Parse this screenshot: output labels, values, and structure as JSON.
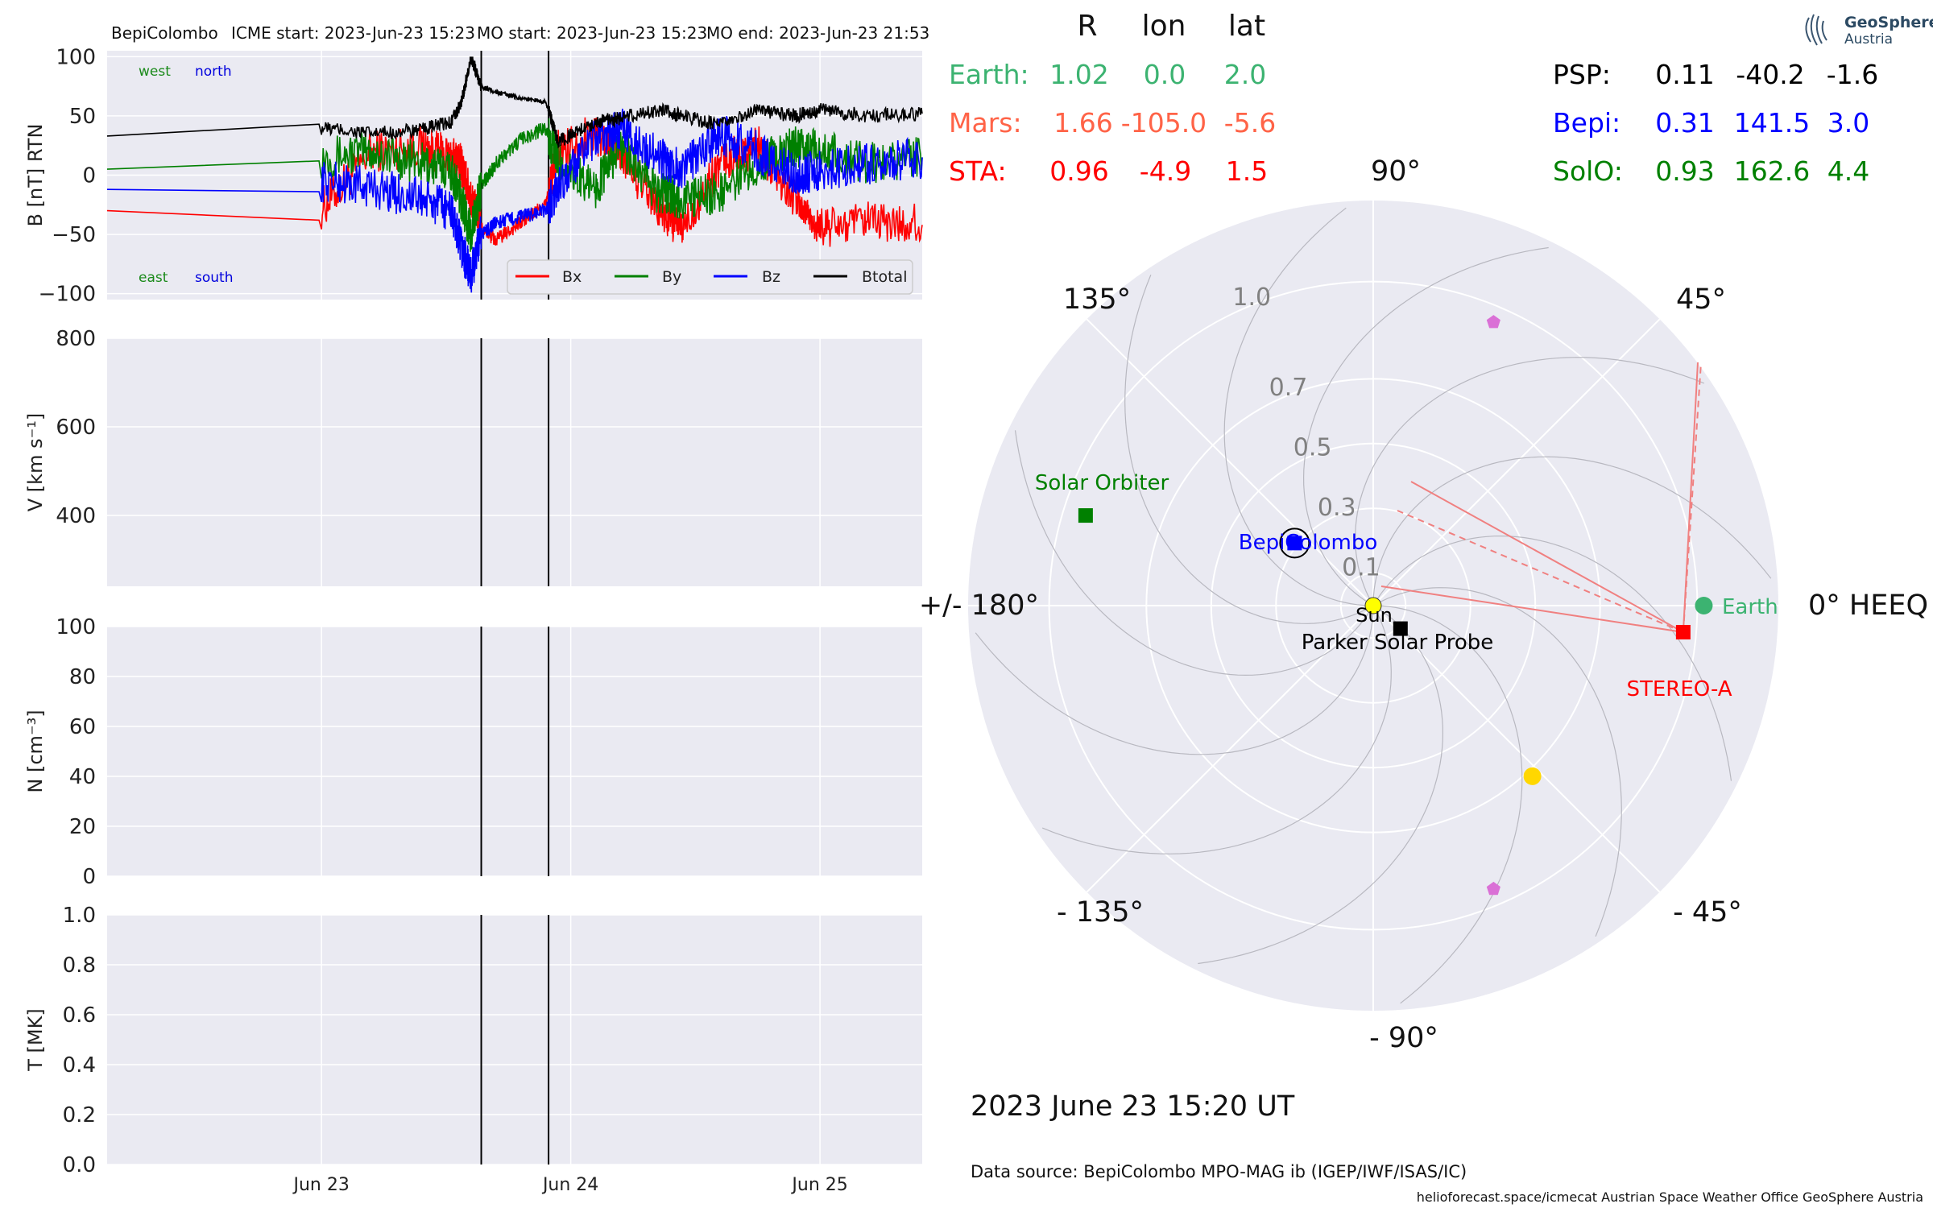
{
  "header": {
    "spacecraft": "BepiColombo",
    "icme_start": "ICME start: 2023-Jun-23 15:23",
    "mo_start": "MO start: 2023-Jun-23 15:23",
    "mo_end": "MO end: 2023-Jun-23 21:53"
  },
  "panels": [
    {
      "key": "B",
      "ylabel": "B [nT] RTN",
      "ticks": [
        "100",
        "50",
        "0",
        "−50",
        "−100"
      ],
      "tick_values": [
        100,
        50,
        0,
        -50,
        -100
      ],
      "ylim": [
        -105,
        105
      ]
    },
    {
      "key": "V",
      "ylabel": "V [km s⁻¹]",
      "ticks": [
        "800",
        "600",
        "400"
      ],
      "tick_values": [
        800,
        600,
        400
      ],
      "ylim": [
        240,
        800
      ]
    },
    {
      "key": "N",
      "ylabel": "N [cm⁻³]",
      "ticks": [
        "100",
        "80",
        "60",
        "40",
        "20",
        "0"
      ],
      "tick_values": [
        100,
        80,
        60,
        40,
        20,
        0
      ],
      "ylim": [
        0,
        100
      ]
    },
    {
      "key": "T",
      "ylabel": "T [MK]",
      "ticks": [
        "1.0",
        "0.8",
        "0.6",
        "0.4",
        "0.2",
        "0.0"
      ],
      "tick_values": [
        1.0,
        0.8,
        0.6,
        0.4,
        0.2,
        0.0
      ],
      "ylim": [
        0,
        1
      ]
    }
  ],
  "b_annotations": {
    "west": "west",
    "north": "north",
    "east": "east",
    "south": "south",
    "colors": {
      "west": "#1a8a1a",
      "north": "#0000dd",
      "east": "#1a8a1a",
      "south": "#0000dd"
    }
  },
  "x_axis": {
    "tick_labels": [
      "Jun 23",
      "Jun 24",
      "Jun 25"
    ],
    "tick_days": [
      23,
      24,
      25
    ],
    "xlim_days": [
      22.14,
      25.41
    ]
  },
  "event_lines_days": [
    23.641,
    23.911
  ],
  "legend": [
    {
      "name": "Bx",
      "color": "#ff0000"
    },
    {
      "name": "By",
      "color": "#008000"
    },
    {
      "name": "Bz",
      "color": "#0000ff"
    },
    {
      "name": "Btotal",
      "color": "#000000"
    }
  ],
  "chart_data": {
    "type": "line",
    "series": [
      {
        "name": "Bx",
        "x_days": [
          22.14,
          22.99,
          23.0,
          23.2,
          23.4,
          23.52,
          23.56,
          23.6,
          23.64,
          23.7,
          23.8,
          23.9,
          23.95,
          24.1,
          24.2,
          24.35,
          24.45,
          24.6,
          24.75,
          24.9,
          25.0,
          25.2,
          25.41
        ],
        "values": [
          -30,
          -38,
          -28,
          20,
          25,
          15,
          10,
          -20,
          -45,
          -55,
          -40,
          -25,
          22,
          35,
          20,
          -30,
          -45,
          10,
          25,
          -20,
          -45,
          -40,
          -42
        ]
      },
      {
        "name": "By",
        "x_days": [
          22.14,
          22.99,
          23.0,
          23.2,
          23.4,
          23.52,
          23.56,
          23.6,
          23.64,
          23.7,
          23.8,
          23.9,
          23.95,
          24.1,
          24.2,
          24.35,
          24.45,
          24.6,
          24.75,
          24.9,
          25.0,
          25.2,
          25.41
        ],
        "values": [
          5,
          12,
          15,
          20,
          10,
          5,
          -20,
          -50,
          -10,
          10,
          30,
          40,
          10,
          -10,
          25,
          -15,
          -20,
          -15,
          10,
          25,
          20,
          10,
          15
        ]
      },
      {
        "name": "Bz",
        "x_days": [
          22.14,
          22.99,
          23.0,
          23.2,
          23.4,
          23.52,
          23.56,
          23.6,
          23.64,
          23.7,
          23.8,
          23.9,
          23.95,
          24.1,
          24.2,
          24.35,
          24.45,
          24.6,
          24.75,
          24.9,
          25.0,
          25.2,
          25.41
        ],
        "values": [
          -12,
          -14,
          -5,
          -10,
          -20,
          -30,
          -60,
          -85,
          -50,
          -40,
          -35,
          -30,
          -10,
          30,
          40,
          15,
          5,
          35,
          20,
          0,
          5,
          10,
          15
        ]
      },
      {
        "name": "Btotal",
        "x_days": [
          22.14,
          22.99,
          23.0,
          23.2,
          23.4,
          23.52,
          23.56,
          23.6,
          23.64,
          23.7,
          23.8,
          23.9,
          23.95,
          24.1,
          24.2,
          24.35,
          24.45,
          24.6,
          24.75,
          24.9,
          25.0,
          25.2,
          25.41
        ],
        "values": [
          33,
          43,
          40,
          35,
          38,
          45,
          60,
          100,
          75,
          70,
          65,
          62,
          28,
          45,
          48,
          55,
          50,
          42,
          55,
          50,
          55,
          50,
          52
        ]
      }
    ],
    "xlabel": "",
    "ylim": [
      -105,
      105
    ]
  },
  "positions": {
    "col_headers": [
      "R",
      "lon",
      "lat"
    ],
    "left_rows": [
      {
        "label": "Earth:",
        "r": "1.02",
        "lon": "0.0",
        "lat": "2.0",
        "color": "#3cb371"
      },
      {
        "label": "Mars:",
        "r": "1.66",
        "lon": "-105.0",
        "lat": "-5.6",
        "color": "#ff6347"
      },
      {
        "label": "STA:",
        "r": "0.96",
        "lon": "-4.9",
        "lat": "1.5",
        "color": "#ff0000"
      }
    ],
    "right_rows": [
      {
        "label": "PSP:",
        "r": "0.11",
        "lon": "-40.2",
        "lat": "-1.6",
        "color": "#000000"
      },
      {
        "label": "Bepi:",
        "r": "0.31",
        "lon": "141.5",
        "lat": "3.0",
        "color": "#0000ff"
      },
      {
        "label": "SolO:",
        "r": "0.93",
        "lon": "162.6",
        "lat": "4.4",
        "color": "#008000"
      }
    ]
  },
  "polar": {
    "angle_labels": {
      "a90": "90°",
      "a45": "45°",
      "a135": "135°",
      "a0": "0° HEEQ",
      "a180": "+/- 180°",
      "am45": "- 45°",
      "am135": "- 135°",
      "am90": "- 90°"
    },
    "radial_labels": [
      "1.0",
      "0.7",
      "0.5",
      "0.3",
      "0.1"
    ],
    "radial_values": [
      1.0,
      0.7,
      0.5,
      0.3,
      0.1
    ],
    "rmax": 1.25,
    "bodies": [
      {
        "name": "Sun",
        "label": "Sun",
        "r": 0.0,
        "lon": 0,
        "color": "#ffff00",
        "shape": "circle"
      },
      {
        "name": "Earth",
        "label": "Earth",
        "r": 1.02,
        "lon": 0.0,
        "color": "#3cb371",
        "shape": "circle"
      },
      {
        "name": "STEREO-A",
        "label": "STEREO-A",
        "r": 0.96,
        "lon": -4.9,
        "color": "#ff0000",
        "shape": "square"
      },
      {
        "name": "BepiColombo",
        "label": "BepiColombo",
        "r": 0.31,
        "lon": 141.5,
        "color": "#0000ff",
        "shape": "square"
      },
      {
        "name": "Solar Orbiter",
        "label": "Solar Orbiter",
        "r": 0.93,
        "lon": 162.6,
        "color": "#008000",
        "shape": "square"
      },
      {
        "name": "Parker Solar Probe",
        "label": "Parker Solar Probe",
        "r": 0.11,
        "lon": -40.2,
        "color": "#000000",
        "shape": "square"
      },
      {
        "name": "Venus",
        "label": "",
        "r": 0.72,
        "lon": -47,
        "color": "#ffd700",
        "shape": "circle"
      },
      {
        "name": "planet-a",
        "label": "",
        "r": 0.95,
        "lon": 67,
        "color": "#da70d6",
        "shape": "pentagon"
      },
      {
        "name": "planet-b",
        "label": "",
        "r": 0.95,
        "lon": -67,
        "color": "#da70d6",
        "shape": "pentagon"
      }
    ]
  },
  "footer": {
    "date": "2023 June 23  15:20 UT",
    "source": "Data source: BepiColombo MPO-MAG ib (IGEP/IWF/ISAS/IC)",
    "credits": "helioforecast.space/icmecat   Austrian Space Weather Office   GeoSphere Austria"
  },
  "logo": {
    "name": "GeoSphere",
    "sub": "Austria"
  }
}
